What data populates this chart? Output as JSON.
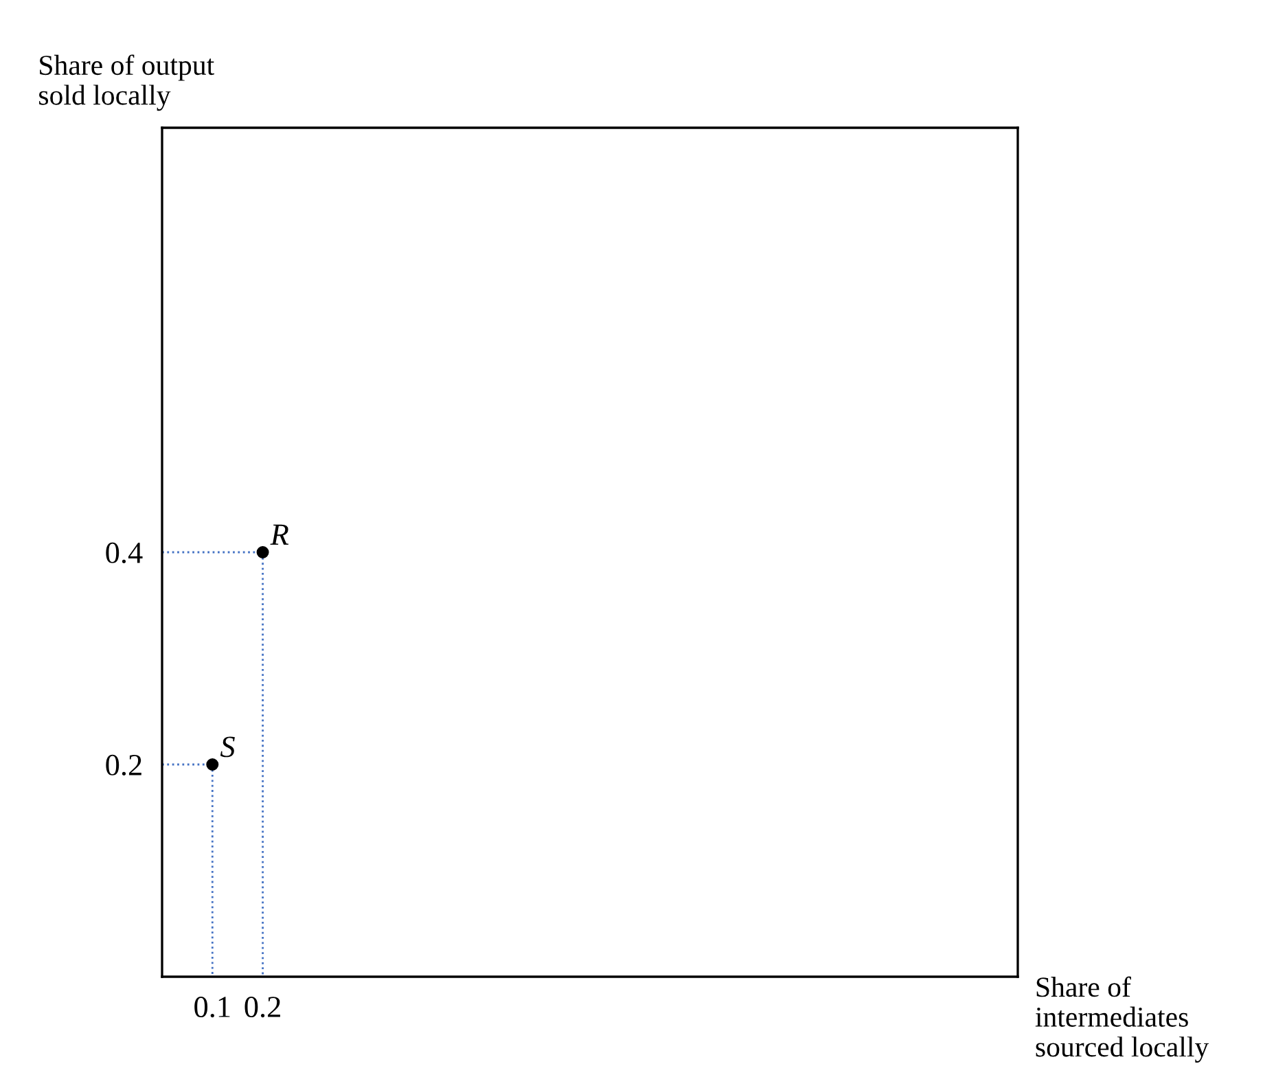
{
  "chart_data": {
    "type": "scatter",
    "xlabel": "Share of\nintermediates\nsourced locally",
    "ylabel": "Share of output\nsold locally",
    "xlim": [
      0,
      1.7
    ],
    "ylim": [
      0,
      0.8
    ],
    "xticks": [
      0.1,
      0.2
    ],
    "yticks": [
      0.2,
      0.4
    ],
    "grid": false,
    "marker": "circle",
    "series": [
      {
        "type": "line",
        "color": "#4472c4",
        "line_style": "dotted",
        "marker": "none",
        "x": [
          0,
          0.2,
          0.2
        ],
        "values": [
          0.4,
          0.4,
          0
        ]
      },
      {
        "type": "line",
        "color": "#4472c4",
        "line_style": "dotted",
        "marker": "none",
        "x": [
          0,
          0.1,
          0.1
        ],
        "values": [
          0.2,
          0.2,
          0
        ]
      },
      {
        "color": "#000000",
        "x": [
          0.2,
          0.1
        ],
        "values": [
          0.4,
          0.2
        ]
      }
    ],
    "annotations": [
      {
        "text": "R",
        "x": 0.2,
        "y": 0.4
      },
      {
        "text": "S",
        "x": 0.1,
        "y": 0.2
      }
    ]
  }
}
